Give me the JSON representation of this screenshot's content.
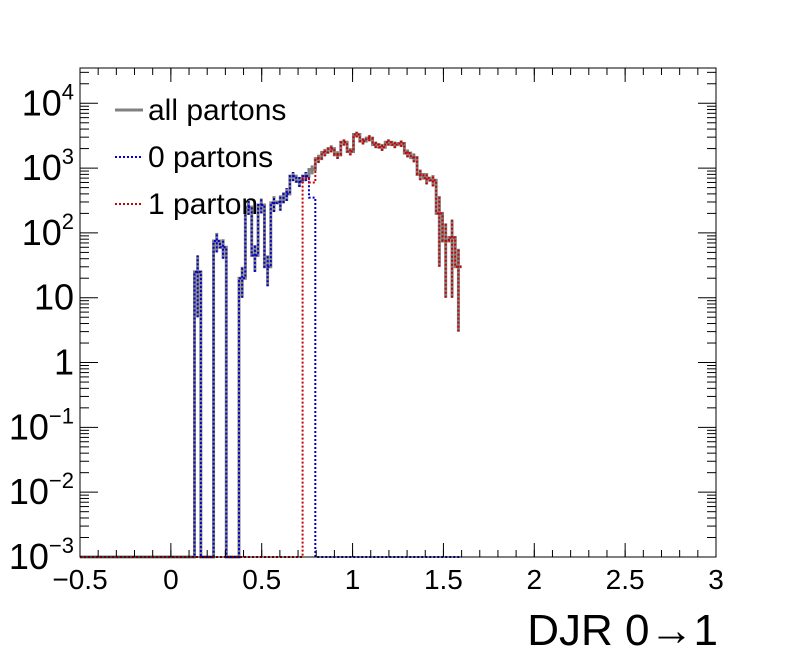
{
  "chart_data": {
    "type": "histogram-step",
    "title": "",
    "xlabel": "DJR 0→1",
    "ylabel": "",
    "xlim": [
      -0.5,
      3.0
    ],
    "ylim": [
      0.001,
      35000
    ],
    "yscale": "log",
    "grid": false,
    "legend_position": "top-left",
    "x_ticks": [
      {
        "value": -0.5,
        "label": "−0.5"
      },
      {
        "value": 0,
        "label": "0"
      },
      {
        "value": 0.5,
        "label": "0.5"
      },
      {
        "value": 1,
        "label": "1"
      },
      {
        "value": 1.5,
        "label": "1.5"
      },
      {
        "value": 2,
        "label": "2"
      },
      {
        "value": 2.5,
        "label": "2.5"
      },
      {
        "value": 3,
        "label": "3"
      }
    ],
    "y_ticks": [
      {
        "value": 0.001,
        "base": "10",
        "exp": "−3"
      },
      {
        "value": 0.01,
        "base": "10",
        "exp": "−2"
      },
      {
        "value": 0.1,
        "base": "10",
        "exp": "−1"
      },
      {
        "value": 1,
        "base": "1",
        "exp": ""
      },
      {
        "value": 10,
        "base": "10",
        "exp": ""
      },
      {
        "value": 100,
        "base": "10",
        "exp": "2"
      },
      {
        "value": 1000,
        "base": "10",
        "exp": "3"
      },
      {
        "value": 10000,
        "base": "10",
        "exp": "4"
      }
    ],
    "bin_edges_start": -0.5,
    "bin_width": 0.035,
    "series": [
      {
        "name": "all partons",
        "color": "#808080",
        "style": "solid",
        "values": [
          0,
          0,
          0,
          0,
          0,
          0,
          0,
          0,
          0,
          0,
          0,
          0,
          0,
          0,
          0,
          0,
          0,
          0,
          25,
          0,
          0,
          75,
          60,
          0,
          0,
          20,
          250,
          45,
          270,
          30,
          290,
          300,
          400,
          750,
          620,
          750,
          950,
          1400,
          1750,
          2000,
          1600,
          2500,
          1800,
          3300,
          2600,
          2900,
          2300,
          2100,
          2500,
          2300,
          2400,
          1700,
          1450,
          800,
          700,
          650,
          200,
          75,
          85,
          30
        ],
        "errors": [
          0,
          0,
          0,
          0,
          0,
          0,
          0,
          0,
          0,
          0,
          0,
          0,
          0,
          0,
          0,
          0,
          0,
          0,
          20,
          0,
          0,
          25,
          20,
          0,
          0,
          10,
          60,
          20,
          70,
          15,
          80,
          80,
          90,
          120,
          110,
          120,
          150,
          200,
          230,
          250,
          220,
          280,
          230,
          330,
          290,
          310,
          270,
          260,
          280,
          270,
          280,
          240,
          220,
          150,
          140,
          130,
          170,
          65,
          75,
          27
        ]
      },
      {
        "name": "0 partons",
        "color": "#0000cc",
        "style": "dotted",
        "values": [
          0,
          0,
          0,
          0,
          0,
          0,
          0,
          0,
          0,
          0,
          0,
          0,
          0,
          0,
          0,
          0,
          0,
          0,
          25,
          0,
          0,
          75,
          60,
          0,
          0,
          20,
          250,
          45,
          270,
          30,
          290,
          300,
          400,
          750,
          620,
          750,
          350,
          0,
          0,
          0,
          0,
          0,
          0,
          0,
          0,
          0,
          0,
          0,
          0,
          0,
          0,
          0,
          0,
          0,
          0,
          0,
          0,
          0,
          0,
          0
        ],
        "errors": [
          0,
          0,
          0,
          0,
          0,
          0,
          0,
          0,
          0,
          0,
          0,
          0,
          0,
          0,
          0,
          0,
          0,
          0,
          20,
          0,
          0,
          25,
          20,
          0,
          0,
          10,
          60,
          20,
          70,
          15,
          80,
          80,
          90,
          120,
          110,
          120,
          0,
          0,
          0,
          0,
          0,
          0,
          0,
          0,
          0,
          0,
          0,
          0,
          0,
          0,
          0,
          0,
          0,
          0,
          0,
          0,
          0,
          0,
          0,
          0
        ]
      },
      {
        "name": "1 parton",
        "color": "#cc0000",
        "style": "dotted",
        "values": [
          0,
          0,
          0,
          0,
          0,
          0,
          0,
          0,
          0,
          0,
          0,
          0,
          0,
          0,
          0,
          0,
          0,
          0,
          0,
          0,
          0,
          0,
          0,
          0,
          0,
          0,
          0,
          0,
          0,
          0,
          0,
          0,
          0,
          0,
          0,
          700,
          600,
          1400,
          1750,
          2000,
          1600,
          2500,
          1800,
          3300,
          2600,
          2900,
          2300,
          2100,
          2500,
          2300,
          2400,
          1700,
          1450,
          800,
          700,
          650,
          200,
          75,
          85,
          30
        ],
        "errors": [
          0,
          0,
          0,
          0,
          0,
          0,
          0,
          0,
          0,
          0,
          0,
          0,
          0,
          0,
          0,
          0,
          0,
          0,
          0,
          0,
          0,
          0,
          0,
          0,
          0,
          0,
          0,
          0,
          0,
          0,
          0,
          0,
          0,
          0,
          0,
          0,
          0,
          200,
          230,
          250,
          220,
          280,
          230,
          330,
          290,
          310,
          270,
          260,
          280,
          270,
          280,
          240,
          220,
          150,
          140,
          130,
          170,
          65,
          75,
          27
        ]
      }
    ]
  }
}
